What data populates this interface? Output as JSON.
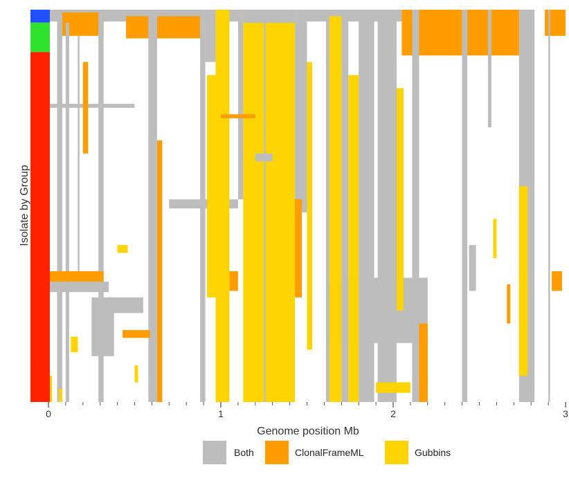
{
  "chart_data": {
    "type": "heatmap",
    "xlabel": "Genome position Mb",
    "ylabel": "Isolate by Group",
    "xlim": [
      0,
      3
    ],
    "x_ticks": [
      {
        "value": 0,
        "label": "0"
      },
      {
        "value": 1,
        "label": "1"
      },
      {
        "value": 2,
        "label": "2"
      },
      {
        "value": 3,
        "label": "3"
      }
    ],
    "minor_tick_step": 0.1,
    "n_isolates": 300,
    "group_bar": [
      {
        "group": "group-1",
        "color": "#1f4fff",
        "fraction": 0.033
      },
      {
        "group": "group-2",
        "color": "#2ee32e",
        "fraction": 0.075
      },
      {
        "group": "group-3",
        "color": "#ff2200",
        "fraction": 0.892
      }
    ],
    "legend": {
      "position": "bottom",
      "entries": [
        {
          "label": "Both",
          "color": "#bdbdbd"
        },
        {
          "label": "ClonalFrameML",
          "color": "#ff9d00"
        },
        {
          "label": "Gubbins",
          "color": "#ffd400"
        }
      ]
    },
    "blocks": [
      {
        "category": "Both",
        "x": [
          0.0,
          2.76
        ],
        "rows": [
          0,
          9
        ]
      },
      {
        "category": "ClonalFrameML",
        "x": [
          0.05,
          0.32
        ],
        "rows": [
          2,
          20
        ]
      },
      {
        "category": "ClonalFrameML",
        "x": [
          0.45,
          0.9
        ],
        "rows": [
          5,
          22
        ]
      },
      {
        "category": "ClonalFrameML",
        "x": [
          2.05,
          2.8
        ],
        "rows": [
          0,
          35
        ]
      },
      {
        "category": "ClonalFrameML",
        "x": [
          2.88,
          3.0
        ],
        "rows": [
          0,
          20
        ]
      },
      {
        "category": "Both",
        "x": [
          0.05,
          0.08
        ],
        "rows": [
          0,
          300
        ]
      },
      {
        "category": "Both",
        "x": [
          0.1,
          0.12
        ],
        "rows": [
          10,
          300
        ]
      },
      {
        "category": "Both",
        "x": [
          0.17,
          0.18
        ],
        "rows": [
          20,
          200
        ]
      },
      {
        "category": "Both",
        "x": [
          0.29,
          0.32
        ],
        "rows": [
          0,
          300
        ]
      },
      {
        "category": "Both",
        "x": [
          0.58,
          0.63
        ],
        "rows": [
          0,
          300
        ]
      },
      {
        "category": "Both",
        "x": [
          0.88,
          0.91
        ],
        "rows": [
          0,
          300
        ]
      },
      {
        "category": "Both",
        "x": [
          0.91,
          0.97
        ],
        "rows": [
          0,
          40
        ]
      },
      {
        "category": "Both",
        "x": [
          1.1,
          1.13
        ],
        "rows": [
          0,
          145
        ]
      },
      {
        "category": "Both",
        "x": [
          1.43,
          1.5
        ],
        "rows": [
          0,
          155
        ]
      },
      {
        "category": "Both",
        "x": [
          1.61,
          1.63
        ],
        "rows": [
          0,
          300
        ]
      },
      {
        "category": "Both",
        "x": [
          1.7,
          1.74
        ],
        "rows": [
          0,
          300
        ]
      },
      {
        "category": "Both",
        "x": [
          1.8,
          1.89
        ],
        "rows": [
          0,
          300
        ]
      },
      {
        "category": "Both",
        "x": [
          1.91,
          2.02
        ],
        "rows": [
          0,
          300
        ]
      },
      {
        "category": "Both",
        "x": [
          2.11,
          2.15
        ],
        "rows": [
          0,
          300
        ]
      },
      {
        "category": "Both",
        "x": [
          2.4,
          2.43
        ],
        "rows": [
          0,
          300
        ]
      },
      {
        "category": "Both",
        "x": [
          2.55,
          2.57
        ],
        "rows": [
          0,
          90
        ]
      },
      {
        "category": "Both",
        "x": [
          2.73,
          2.82
        ],
        "rows": [
          0,
          300
        ]
      },
      {
        "category": "Both",
        "x": [
          2.9,
          2.91
        ],
        "rows": [
          0,
          300
        ]
      },
      {
        "category": "Both",
        "x": [
          0.25,
          0.38
        ],
        "rows": [
          220,
          265
        ]
      },
      {
        "category": "Both",
        "x": [
          0.0,
          0.35
        ],
        "rows": [
          208,
          216
        ]
      },
      {
        "category": "Both",
        "x": [
          0.7,
          1.1
        ],
        "rows": [
          145,
          152
        ]
      },
      {
        "category": "Both",
        "x": [
          1.62,
          2.2
        ],
        "rows": [
          205,
          255
        ]
      },
      {
        "category": "Both",
        "x": [
          2.44,
          2.48
        ],
        "rows": [
          180,
          215
        ]
      },
      {
        "category": "Both",
        "x": [
          1.13,
          1.25
        ],
        "rows": [
          120,
          126
        ]
      },
      {
        "category": "Both",
        "x": [
          0.35,
          0.55
        ],
        "rows": [
          220,
          232
        ]
      },
      {
        "category": "Both",
        "x": [
          0.0,
          0.5
        ],
        "rows": [
          72,
          75
        ]
      },
      {
        "category": "Gubbins",
        "x": [
          0.97,
          1.05
        ],
        "rows": [
          0,
          300
        ]
      },
      {
        "category": "Gubbins",
        "x": [
          1.13,
          1.43
        ],
        "rows": [
          0,
          300
        ]
      },
      {
        "category": "Gubbins",
        "x": [
          1.63,
          1.7
        ],
        "rows": [
          5,
          300
        ]
      },
      {
        "category": "Gubbins",
        "x": [
          1.74,
          1.8
        ],
        "rows": [
          50,
          300
        ]
      },
      {
        "category": "Gubbins",
        "x": [
          2.02,
          2.06
        ],
        "rows": [
          60,
          230
        ]
      },
      {
        "category": "Gubbins",
        "x": [
          2.73,
          2.78
        ],
        "rows": [
          135,
          280
        ]
      },
      {
        "category": "Gubbins",
        "x": [
          0.92,
          0.97
        ],
        "rows": [
          50,
          220
        ]
      },
      {
        "category": "Gubbins",
        "x": [
          1.5,
          1.53
        ],
        "rows": [
          40,
          260
        ]
      },
      {
        "category": "Both",
        "x": [
          1.2,
          1.3
        ],
        "rows": [
          110,
          116
        ]
      },
      {
        "category": "Both",
        "x": [
          1.13,
          1.43
        ],
        "rows": [
          0,
          10
        ]
      },
      {
        "category": "Both",
        "x": [
          1.25,
          1.26
        ],
        "rows": [
          0,
          300
        ]
      },
      {
        "category": "ClonalFrameML",
        "x": [
          1.43,
          1.47
        ],
        "rows": [
          145,
          220
        ]
      },
      {
        "category": "ClonalFrameML",
        "x": [
          0.63,
          0.66
        ],
        "rows": [
          100,
          300
        ]
      },
      {
        "category": "ClonalFrameML",
        "x": [
          0.0,
          0.32
        ],
        "rows": [
          200,
          208
        ]
      },
      {
        "category": "ClonalFrameML",
        "x": [
          0.43,
          0.59
        ],
        "rows": [
          245,
          251
        ]
      },
      {
        "category": "ClonalFrameML",
        "x": [
          2.15,
          2.2
        ],
        "rows": [
          240,
          300
        ]
      },
      {
        "category": "ClonalFrameML",
        "x": [
          2.92,
          2.98
        ],
        "rows": [
          200,
          215
        ]
      },
      {
        "category": "ClonalFrameML",
        "x": [
          0.2,
          0.23
        ],
        "rows": [
          40,
          110
        ]
      },
      {
        "category": "ClonalFrameML",
        "x": [
          2.66,
          2.68
        ],
        "rows": [
          210,
          240
        ]
      },
      {
        "category": "ClonalFrameML",
        "x": [
          1.05,
          1.1
        ],
        "rows": [
          200,
          215
        ]
      },
      {
        "category": "ClonalFrameML",
        "x": [
          1.0,
          1.2
        ],
        "rows": [
          80,
          83
        ]
      },
      {
        "category": "Gubbins",
        "x": [
          0.0,
          0.02
        ],
        "rows": [
          280,
          300
        ]
      },
      {
        "category": "Gubbins",
        "x": [
          0.13,
          0.17
        ],
        "rows": [
          250,
          262
        ]
      },
      {
        "category": "Gubbins",
        "x": [
          0.06,
          0.08
        ],
        "rows": [
          290,
          300
        ]
      },
      {
        "category": "Gubbins",
        "x": [
          0.5,
          0.52
        ],
        "rows": [
          272,
          285
        ]
      },
      {
        "category": "Gubbins",
        "x": [
          1.9,
          2.1
        ],
        "rows": [
          285,
          293
        ]
      },
      {
        "category": "Gubbins",
        "x": [
          0.4,
          0.46
        ],
        "rows": [
          180,
          186
        ]
      },
      {
        "category": "Gubbins",
        "x": [
          2.58,
          2.6
        ],
        "rows": [
          160,
          190
        ]
      }
    ],
    "grid": false
  }
}
